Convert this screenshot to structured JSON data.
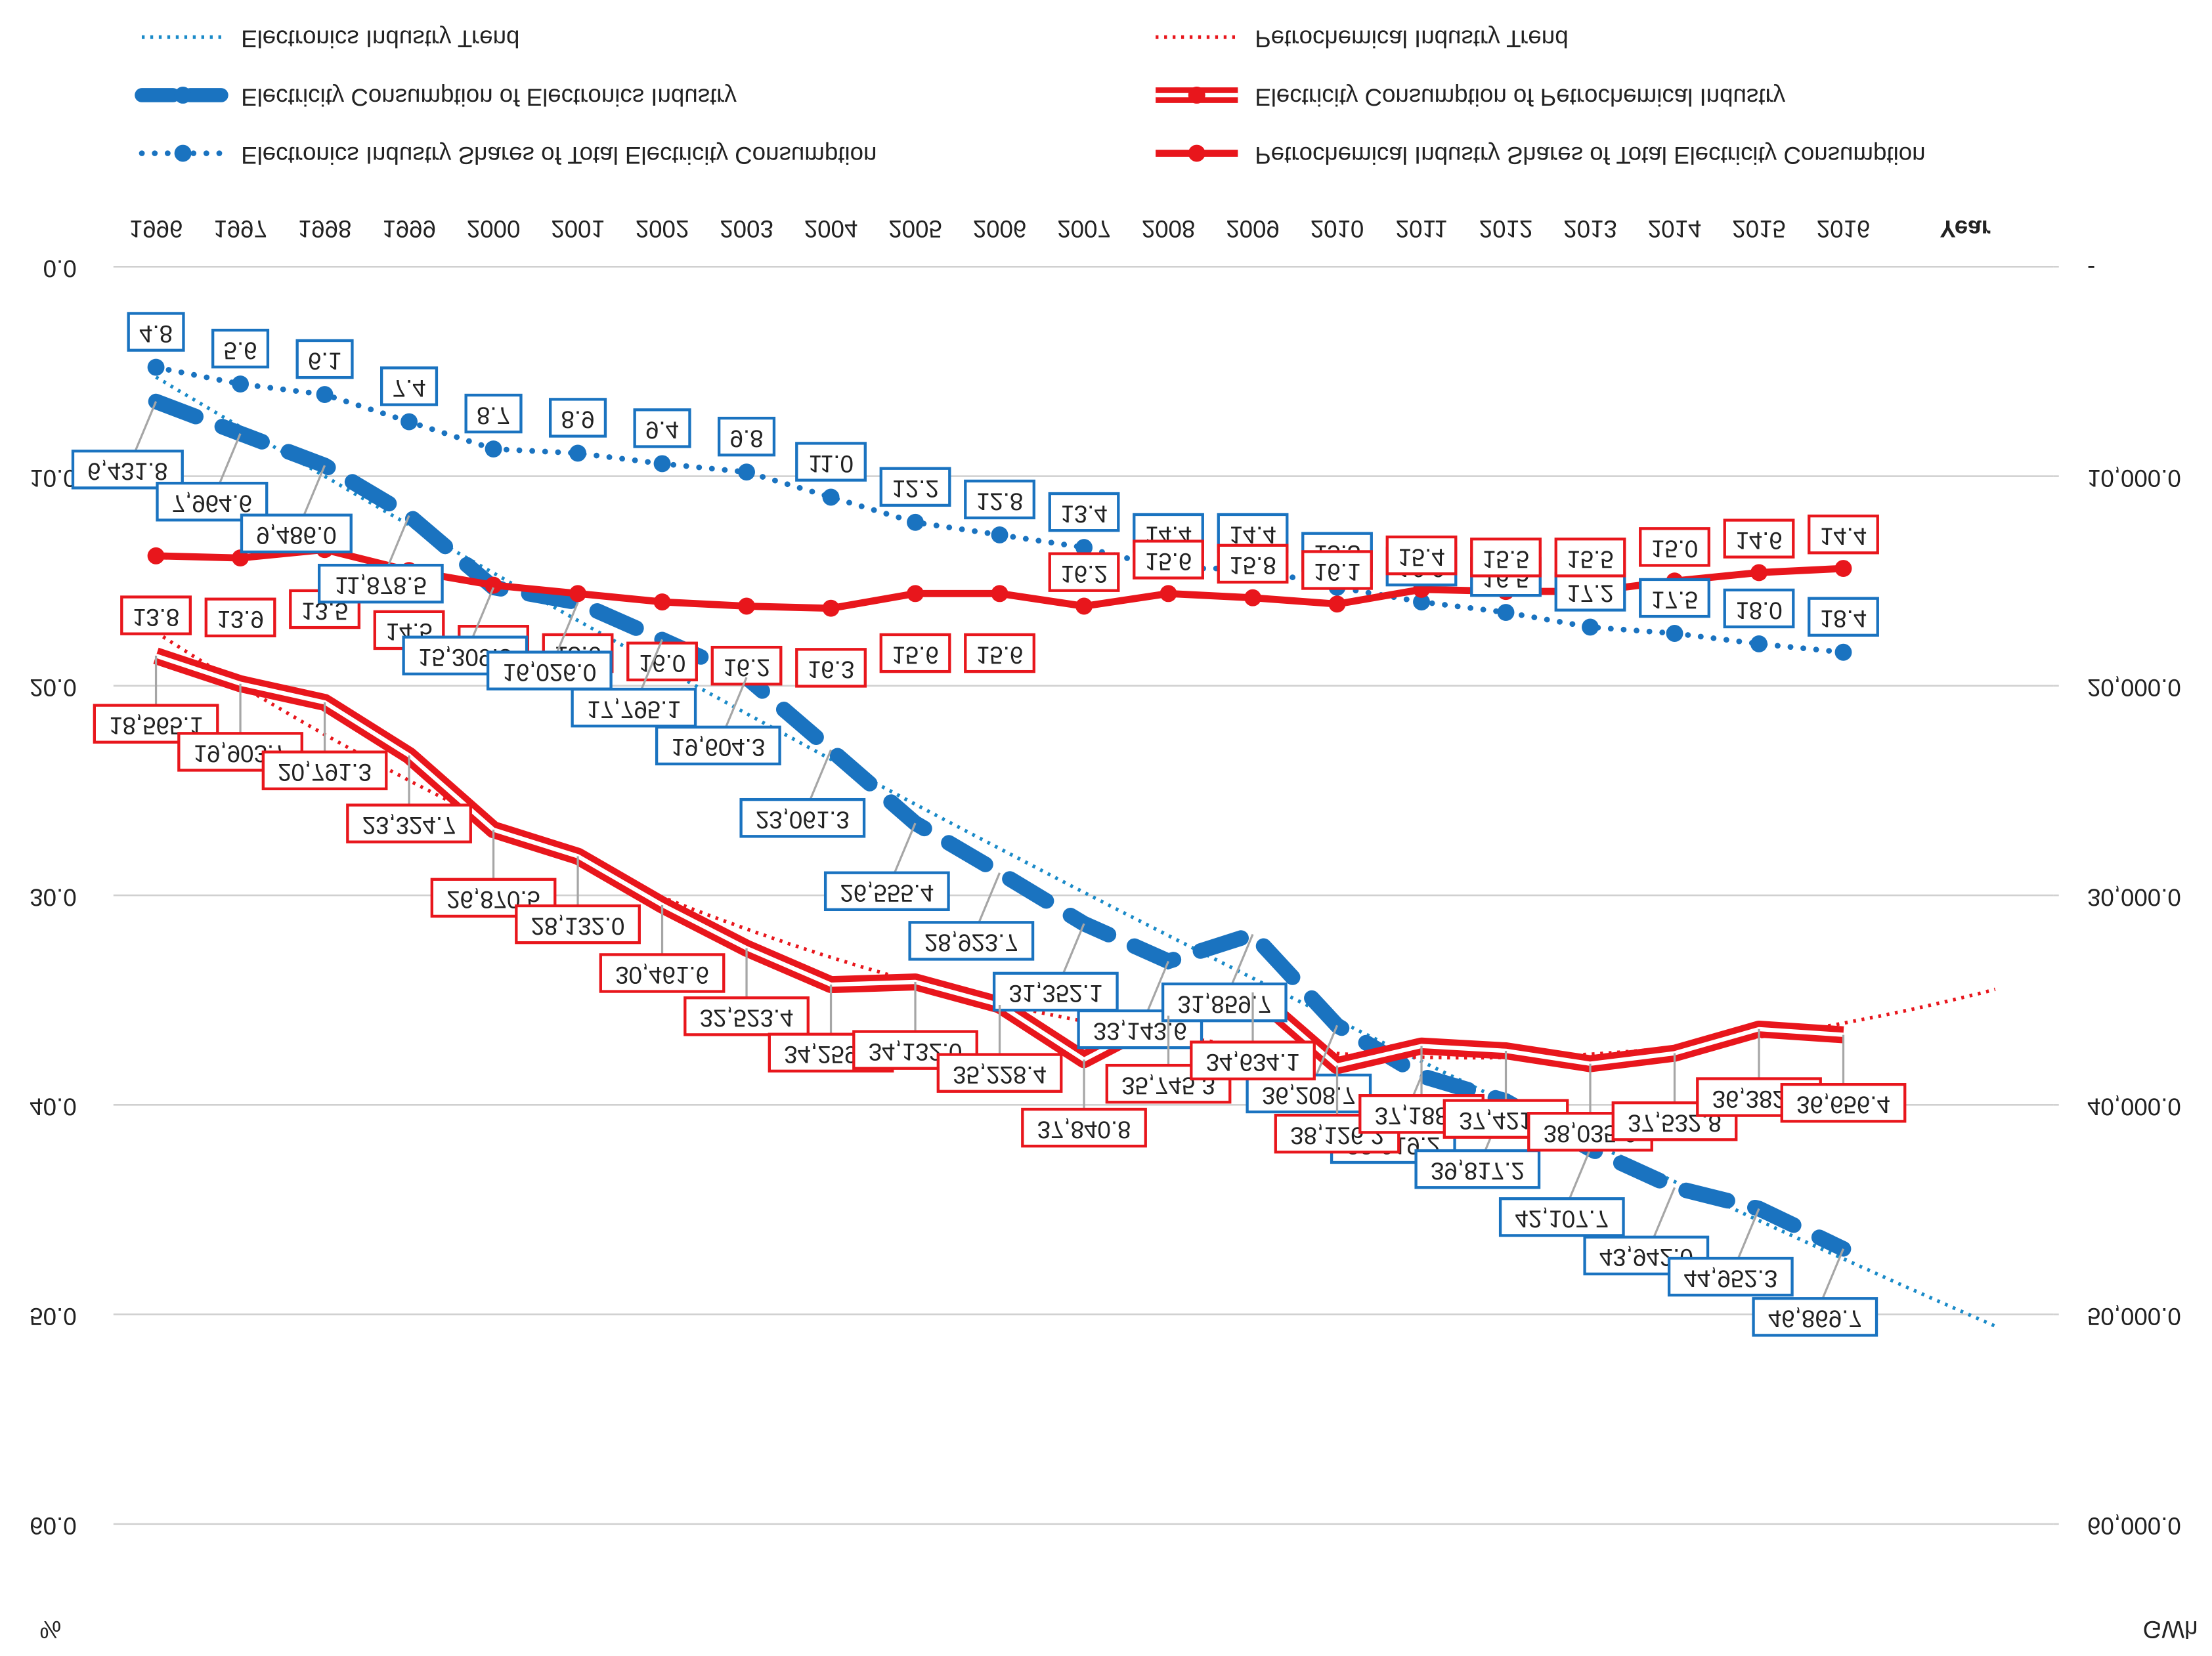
{
  "chart_data": {
    "type": "line",
    "x_label": "Year",
    "y_label": "%",
    "y2_label": "GWh",
    "categories": [
      "1996",
      "1997",
      "1998",
      "1999",
      "2000",
      "2001",
      "2002",
      "2003",
      "2004",
      "2005",
      "2006",
      "2007",
      "2008",
      "2009",
      "2010",
      "2011",
      "2012",
      "2013",
      "2014",
      "2015",
      "2016"
    ],
    "ylim": [
      0,
      60
    ],
    "yticks": [
      {
        "value": 0,
        "label": "0.0"
      },
      {
        "value": 10,
        "label": "10.0"
      },
      {
        "value": 20,
        "label": "20.0"
      },
      {
        "value": 30,
        "label": "30.0"
      },
      {
        "value": 40,
        "label": "40.0"
      },
      {
        "value": 50,
        "label": "50.0"
      },
      {
        "value": 60,
        "label": "60.0"
      }
    ],
    "y2lim": [
      0,
      60000
    ],
    "y2ticks": [
      {
        "value": 0,
        "label": "-"
      },
      {
        "value": 10000,
        "label": "10,000.0"
      },
      {
        "value": 20000,
        "label": "20,000.0"
      },
      {
        "value": 30000,
        "label": "30,000.0"
      },
      {
        "value": 40000,
        "label": "40,000.0"
      },
      {
        "value": 50000,
        "label": "50,000.0"
      },
      {
        "value": 60000,
        "label": "60,000.0"
      }
    ],
    "grid": true,
    "series": [
      {
        "name": "Electronics Industry Shares of Total  Electricity Consumption",
        "color": "#1a73c0",
        "line_style": "dotted",
        "markers": true,
        "values": [
          4.8,
          5.6,
          6.1,
          7.4,
          8.7,
          8.9,
          9.4,
          9.8,
          11.0,
          12.2,
          12.8,
          13.4,
          14.4,
          14.4,
          15.3,
          16.0,
          16.5,
          17.2,
          17.5,
          18.0,
          18.4
        ],
        "value_labels": [
          "4.8",
          "5.6",
          "6.1",
          "7.4",
          "8.7",
          "8.9",
          "9.4",
          "9.8",
          "11.0",
          "12.2",
          "12.8",
          "13.4",
          "14.4",
          "14.4",
          "15.3",
          "16.0",
          "16.5",
          "17.2",
          "17.5",
          "18.0",
          "18.4"
        ]
      },
      {
        "name": "Petrochemical Industry Shares of Total Electricity Consumption",
        "color": "#e8161c",
        "line_style": "solid",
        "markers": true,
        "values": [
          13.8,
          13.9,
          13.5,
          14.5,
          15.2,
          15.6,
          16.0,
          16.2,
          16.3,
          15.6,
          15.6,
          16.2,
          15.6,
          15.8,
          16.1,
          15.4,
          15.5,
          15.5,
          15.0,
          14.6,
          14.4
        ],
        "value_labels": [
          "13.8",
          "13.9",
          "13.5",
          "14.5",
          "15.2",
          "15.6",
          "16.0",
          "16.2",
          "16.3",
          "15.6",
          "15.6",
          "16.2",
          "15.6",
          "15.8",
          "16.1",
          "15.4",
          "15.5",
          "15.5",
          "15.0",
          "14.6",
          "14.4"
        ]
      },
      {
        "name": "Electricity Consumption of Electronics Industry",
        "color": "#1a73c0",
        "line_style": "dashed",
        "axis": "y2",
        "values": [
          6431.8,
          7964.6,
          9486.0,
          11878.5,
          15309.8,
          16026.0,
          17795.1,
          19604.3,
          23061.3,
          26555.4,
          28923.7,
          31352.1,
          33143.6,
          31859.7,
          36208.7,
          38619.2,
          39817.2,
          42107.7,
          43942.0,
          44952.3,
          46869.7
        ],
        "value_labels": [
          "6,431.8",
          "7,964.6",
          "9,486.0",
          "11,878.5",
          "15,309.8",
          "16,026.0",
          "17,795.1",
          "19,604.3",
          "23,061.3",
          "26,555.4",
          "28,923.7",
          "31,352.1",
          "33,143.6",
          "31,859.7",
          "36,208.7",
          "38,619.2",
          "39,817.2",
          "42,107.7",
          "43,942.0",
          "44,952.3",
          "46,869.7"
        ]
      },
      {
        "name": "Electricity Consumption of Petrochemical Industry",
        "color": "#e8161c",
        "line_style": "double",
        "axis": "y2",
        "values": [
          18565.1,
          19903.7,
          20791.3,
          23324.7,
          26870.5,
          28132.0,
          30461.6,
          32523.4,
          34259.6,
          34132.0,
          35228.4,
          37840.8,
          35745.3,
          34634.1,
          38126.2,
          37188.6,
          37421.2,
          38035.0,
          37532.8,
          36382.8,
          36656.4
        ],
        "value_labels": [
          "18,565.1",
          "19,903.7",
          "20,791.3",
          "23,324.7",
          "26,870.5",
          "28,132.0",
          "30,461.6",
          "32,523.4",
          "34,259.6",
          "34,132.0",
          "35,228.4",
          "37,840.8",
          "35,745.3",
          "34,634.1",
          "38,126.2",
          "37,188.6",
          "37,421.2",
          "38,035.0",
          "37,532.8",
          "36,382.8",
          "36,656.4"
        ]
      }
    ],
    "trendlines": [
      {
        "name": "Electronics Industry Trend",
        "color": "#1a8ac8"
      },
      {
        "name": "Petrochemical Industry Trend",
        "color": "#e8161c"
      }
    ]
  }
}
